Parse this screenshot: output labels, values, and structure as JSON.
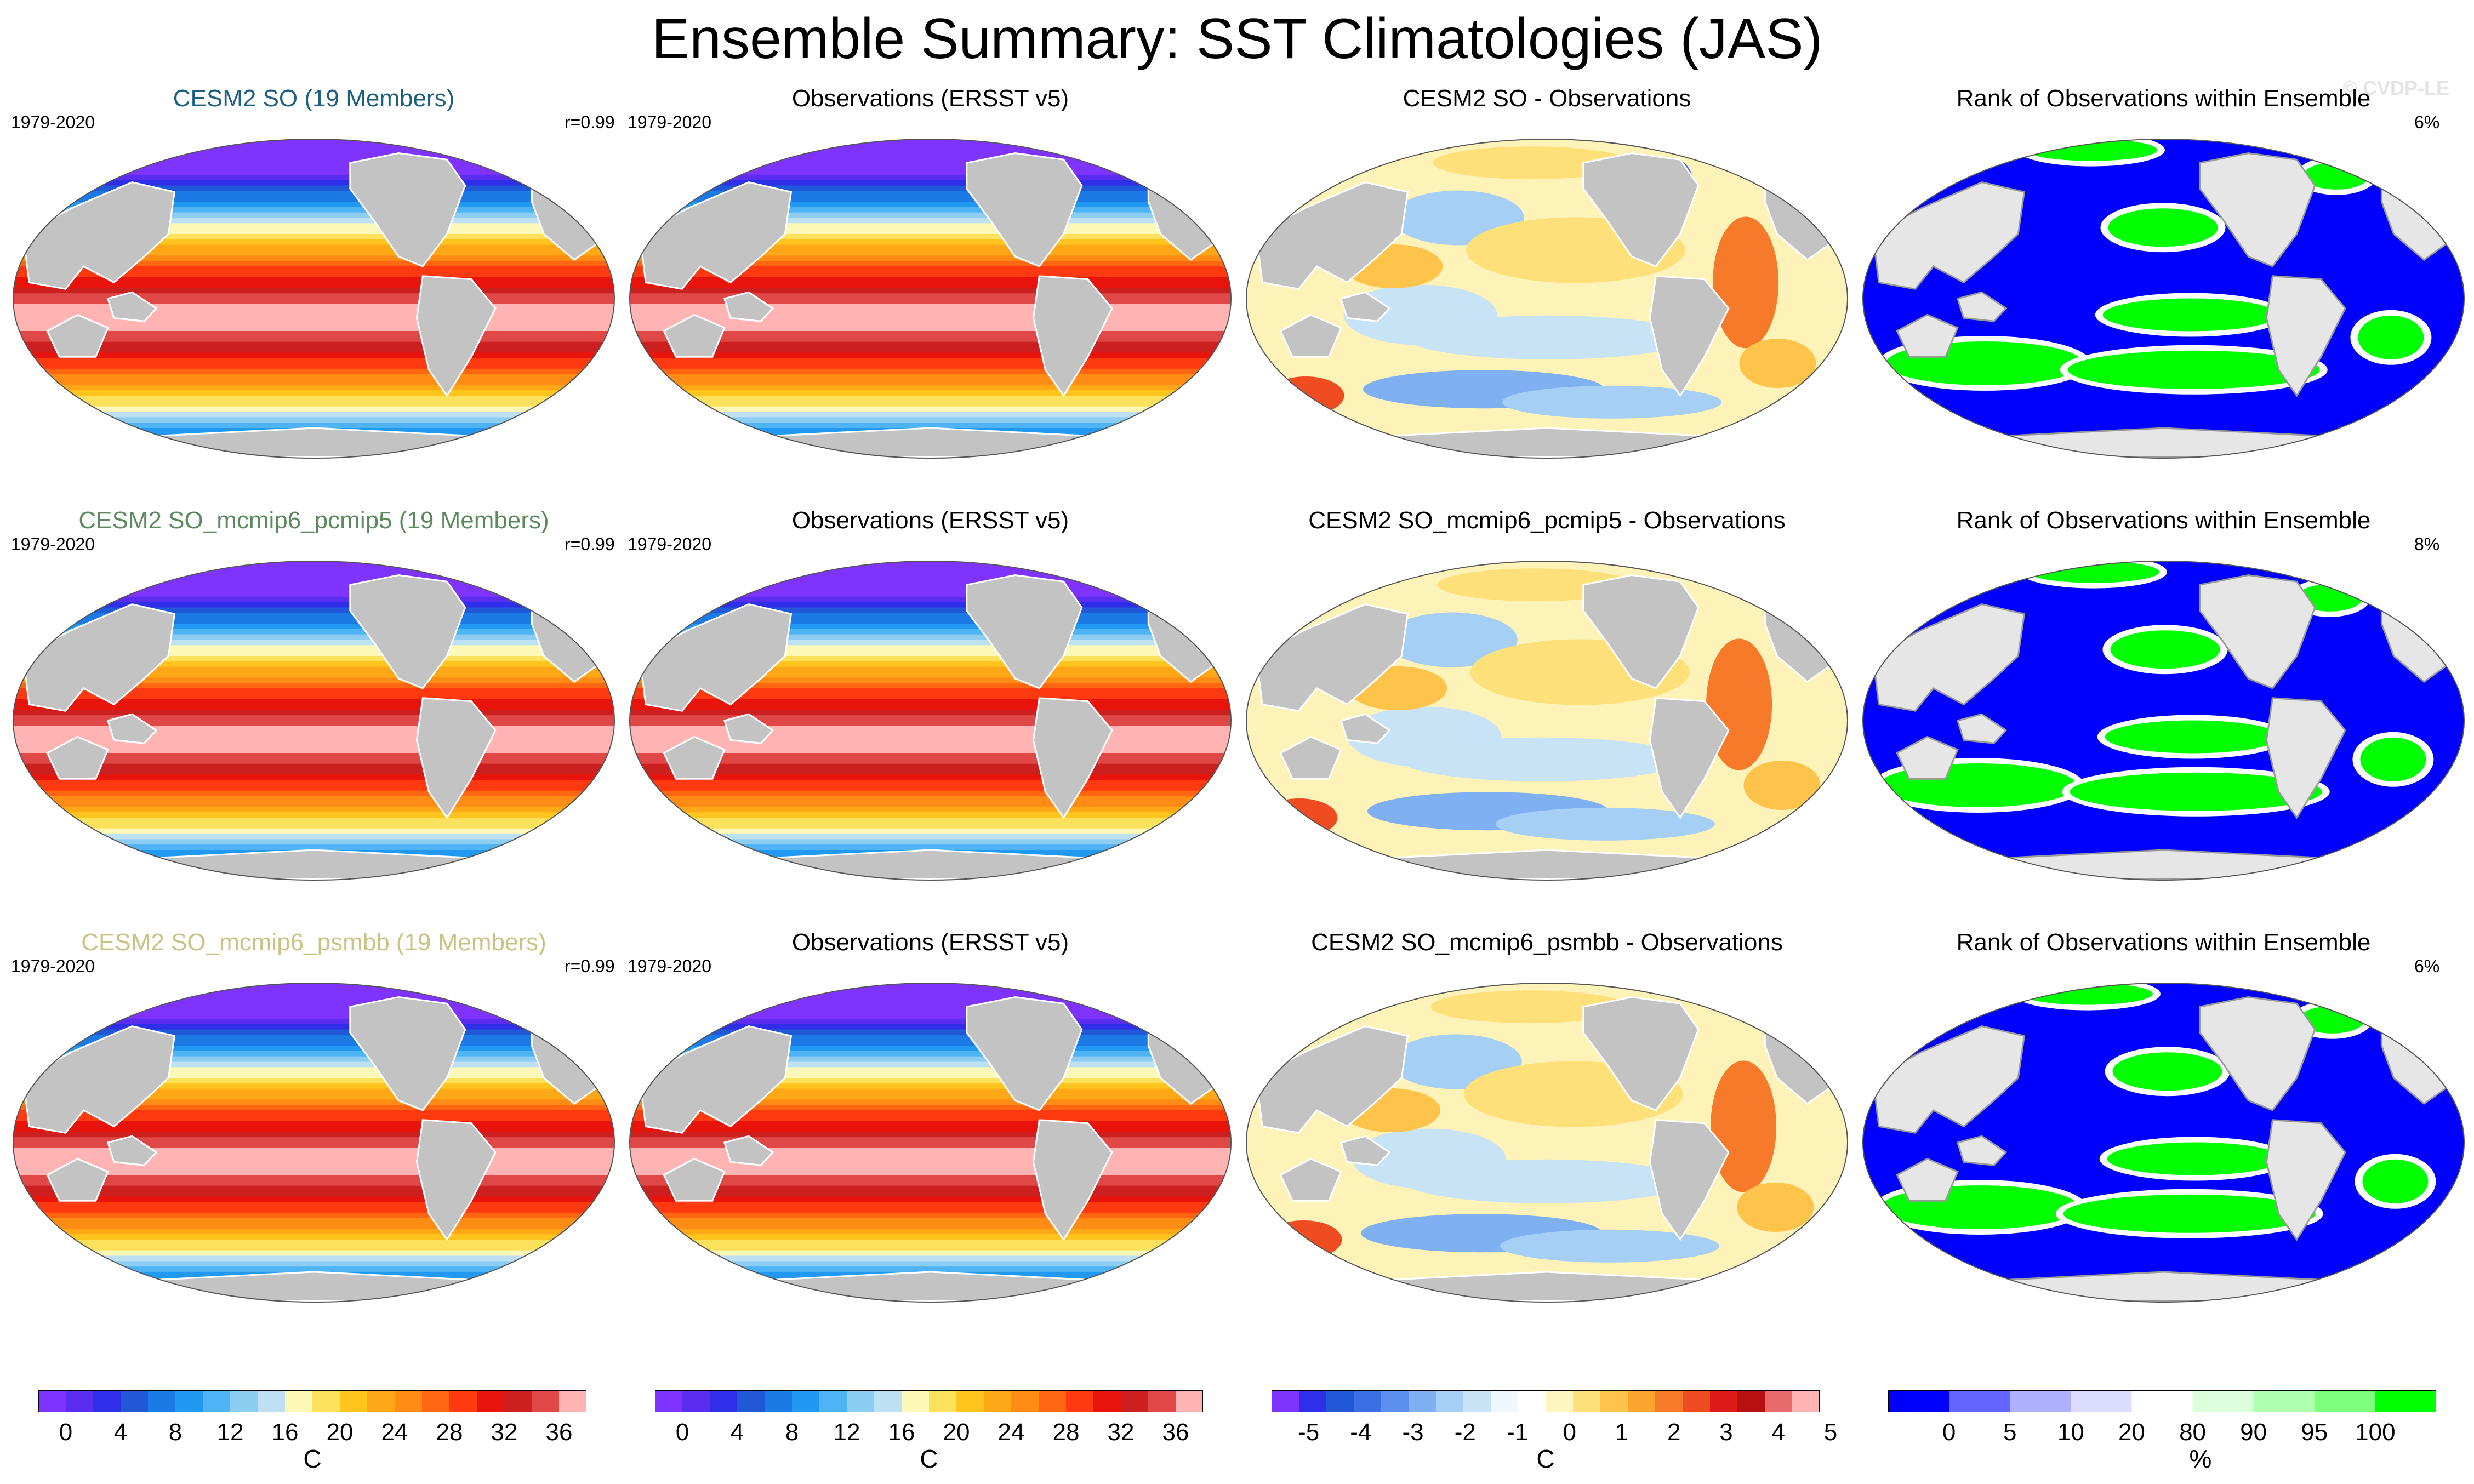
{
  "title": "Ensemble Summary: SST Climatologies (JAS)",
  "watermark": "© CVDP-LE",
  "colors": {
    "land": "#c3c3c3",
    "ocean_outline": "#555555",
    "sst": [
      "#7f33ff",
      "#5a2df0",
      "#2f2ee8",
      "#2058d8",
      "#1c7ae6",
      "#2199f2",
      "#4fb4f5",
      "#8dcdf2",
      "#bde0f2",
      "#fbf8b8",
      "#fce15c",
      "#ffc51e",
      "#ffa817",
      "#ff8c14",
      "#ff6612",
      "#ff3a10",
      "#e8140c",
      "#cc2020",
      "#e04848",
      "#ffb3b3"
    ],
    "diff": [
      "#7f33ff",
      "#2f2ee8",
      "#2058d8",
      "#3a6fe6",
      "#5c8ff0",
      "#7fb0f2",
      "#a6cff5",
      "#c8e3f6",
      "#eef7fc",
      "#ffffff",
      "#fdf6bf",
      "#fde07a",
      "#fdc34a",
      "#fba52f",
      "#f7792a",
      "#ef4c22",
      "#de1b1b",
      "#b81010",
      "#e86a6a",
      "#ffb3b3"
    ],
    "rank": [
      "#0000ff",
      "#6464ff",
      "#afafff",
      "#dcdcff",
      "#ffffff",
      "#dcffdc",
      "#afffaf",
      "#7dff7d",
      "#00ff00"
    ]
  },
  "rows": [
    {
      "model": {
        "title": "CESM2 SO (19 Members)",
        "title_color": "#1b5f83",
        "years": "1979-2020",
        "stat": "r=0.99"
      },
      "obs": {
        "title": "Observations (ERSST v5)",
        "years": "1979-2020"
      },
      "diff": {
        "title": "CESM2 SO - Observations"
      },
      "rank": {
        "title": "Rank of Observations within Ensemble",
        "stat": "6%"
      }
    },
    {
      "model": {
        "title": "CESM2 SO_mcmip6_pcmip5 (19 Members)",
        "title_color": "#5a8a5e",
        "years": "1979-2020",
        "stat": "r=0.99"
      },
      "obs": {
        "title": "Observations (ERSST v5)",
        "years": "1979-2020"
      },
      "diff": {
        "title": "CESM2 SO_mcmip6_pcmip5 - Observations"
      },
      "rank": {
        "title": "Rank of Observations within Ensemble",
        "stat": "8%"
      }
    },
    {
      "model": {
        "title": "CESM2 SO_mcmip6_psmbb (19 Members)",
        "title_color": "#c9c383",
        "years": "1979-2020",
        "stat": "r=0.99"
      },
      "obs": {
        "title": "Observations (ERSST v5)",
        "years": "1979-2020"
      },
      "diff": {
        "title": "CESM2 SO_mcmip6_psmbb - Observations"
      },
      "rank": {
        "title": "Rank of Observations within Ensemble",
        "stat": "6%"
      }
    }
  ],
  "colorbars": [
    {
      "unit": "C",
      "ticks": [
        "0",
        "4",
        "8",
        "12",
        "16",
        "20",
        "24",
        "28",
        "32",
        "36"
      ],
      "palette": "sst"
    },
    {
      "unit": "C",
      "ticks": [
        "0",
        "4",
        "8",
        "12",
        "16",
        "20",
        "24",
        "28",
        "32",
        "36"
      ],
      "palette": "sst"
    },
    {
      "unit": "C",
      "ticks": [
        "-5",
        "-4",
        "-3",
        "-2",
        "-1",
        "0",
        "1",
        "2",
        "3",
        "4",
        "5"
      ],
      "palette": "diff"
    },
    {
      "unit": "%",
      "ticks": [
        "0",
        "5",
        "10",
        "20",
        "80",
        "90",
        "95",
        "100"
      ],
      "palette": "rank"
    }
  ]
}
